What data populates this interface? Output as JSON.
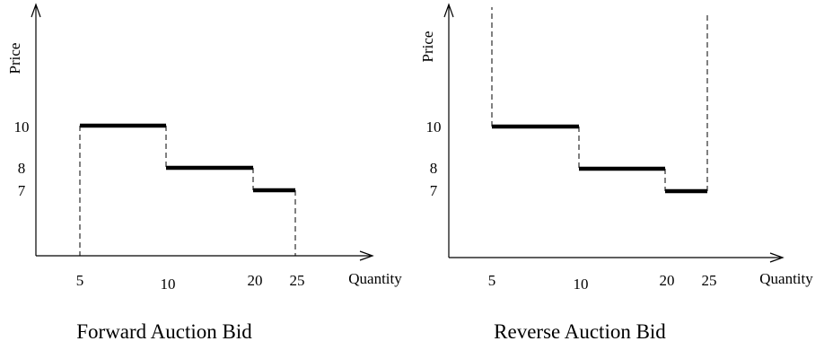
{
  "chart_data": [
    {
      "type": "line",
      "step": true,
      "title": "Forward Auction Bid",
      "xlabel": "Quantity",
      "ylabel": "Price",
      "x_ticks": [
        "5",
        "10",
        "20",
        "25"
      ],
      "y_ticks": [
        "10",
        "8",
        "7"
      ],
      "segments": [
        {
          "x_start": 5,
          "x_end": 10,
          "price": 10
        },
        {
          "x_start": 10,
          "x_end": 20,
          "price": 8
        },
        {
          "x_start": 20,
          "x_end": 25,
          "price": 7
        }
      ],
      "dashed_lines": "vertical drops from the first step down to the quantity axis at 5 and at 25, and dashed connectors between steps"
    },
    {
      "type": "line",
      "step": true,
      "title": "Reverse Auction Bid",
      "xlabel": "Quantity",
      "ylabel": "Price",
      "x_ticks": [
        "5",
        "10",
        "20",
        "25"
      ],
      "y_ticks": [
        "10",
        "8",
        "7"
      ],
      "segments": [
        {
          "x_start": 5,
          "x_end": 10,
          "price": 10
        },
        {
          "x_start": 10,
          "x_end": 20,
          "price": 8
        },
        {
          "x_start": 20,
          "x_end": 25,
          "price": 7
        }
      ],
      "dashed_lines": "vertical lines rising from the first and last steps to the top of the plot at 5 and at 25, and dashed connectors between steps"
    }
  ]
}
